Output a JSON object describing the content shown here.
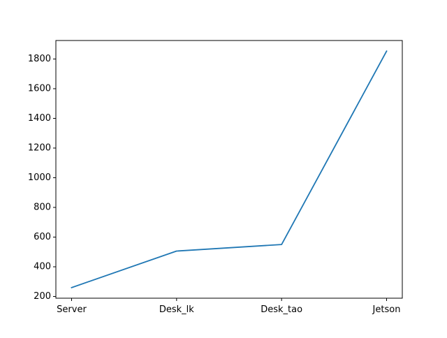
{
  "chart_data": {
    "type": "line",
    "title": "",
    "xlabel": "",
    "ylabel": "",
    "categories": [
      "Server",
      "Desk_lk",
      "Desk_tao",
      "Jetson"
    ],
    "series": [
      {
        "values": [
          260,
          506,
          550,
          1853
        ],
        "color": "#1f77b4"
      }
    ],
    "ylim": [
      188.35,
      1924.65
    ],
    "yticks": [
      200,
      400,
      600,
      800,
      1000,
      1200,
      1400,
      1600,
      1800
    ],
    "ytick_labels": [
      "200",
      "400",
      "600",
      "800",
      "1000",
      "1200",
      "1400",
      "1600",
      "1800"
    ],
    "grid": false,
    "legend": "none"
  }
}
